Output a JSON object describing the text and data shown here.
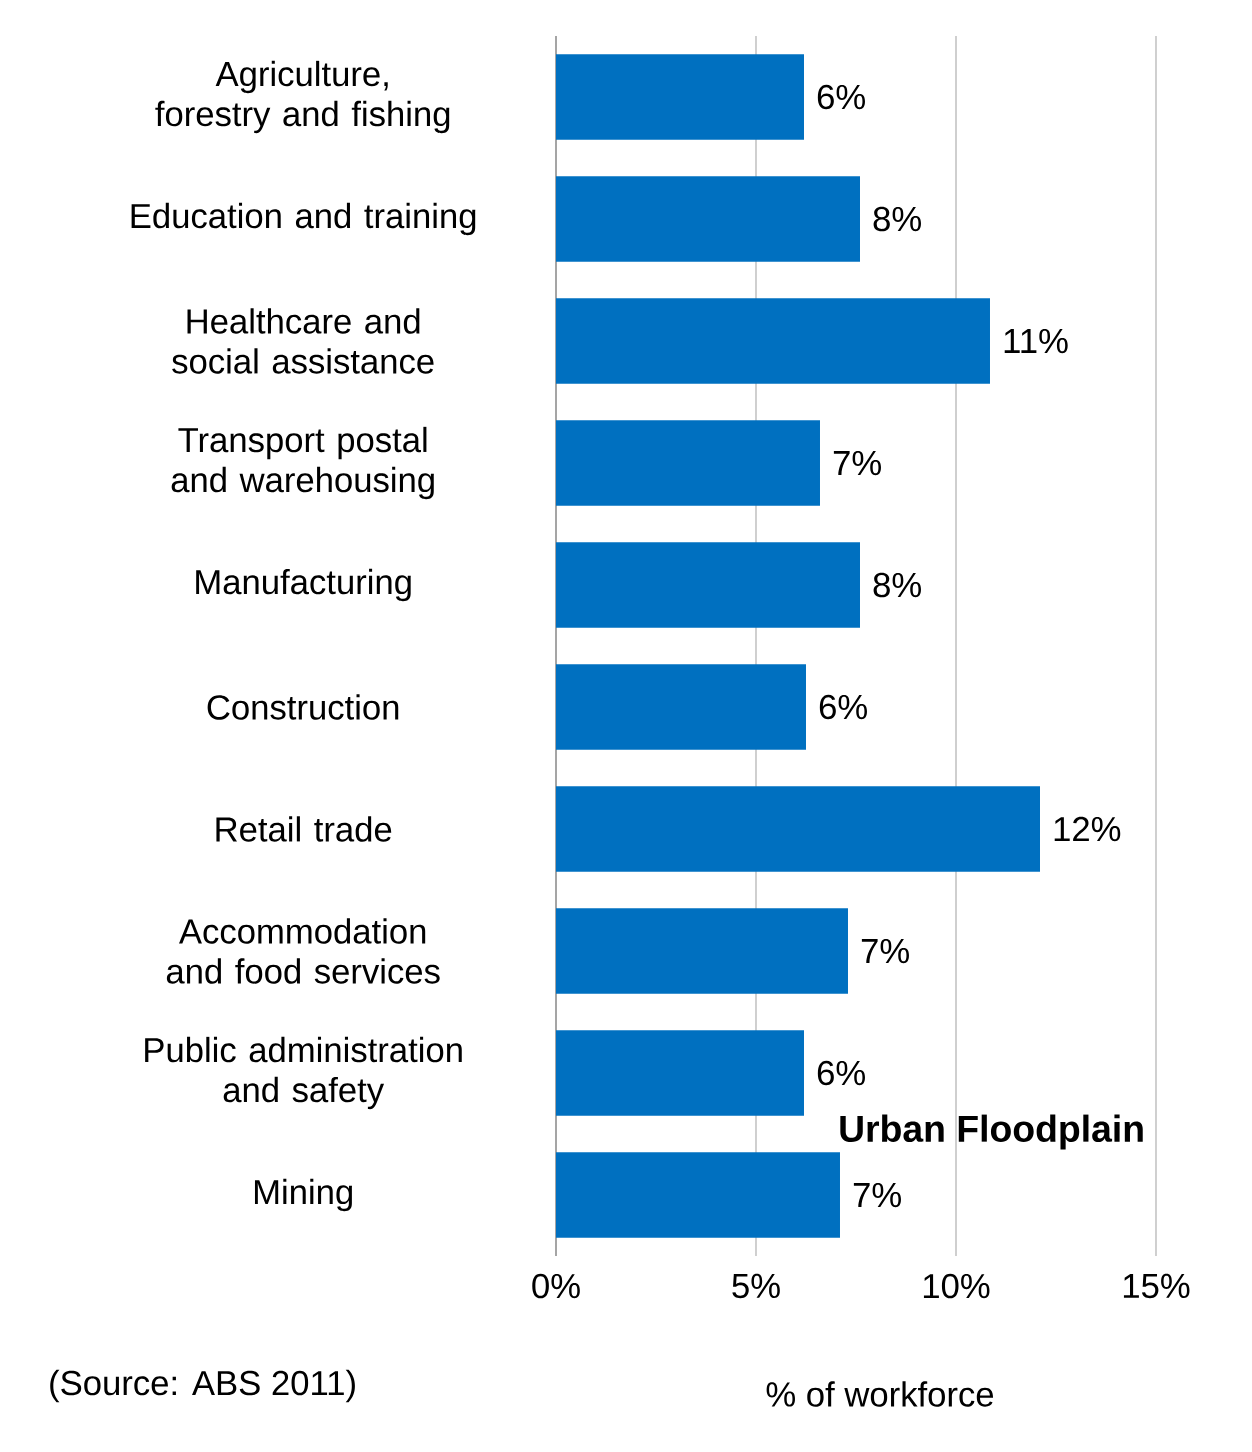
{
  "chart_data": {
    "type": "bar",
    "orientation": "horizontal",
    "categories": [
      "Agriculture, forestry and fishing",
      "Education and training",
      "Healthcare and social assistance",
      "Transport postal and warehousing",
      "Manufacturing",
      "Construction",
      "Retail trade",
      "Accommodation and food services",
      "Public administration and safety",
      "Mining"
    ],
    "values": [
      6.2,
      7.6,
      10.85,
      6.6,
      7.6,
      6.25,
      12.1,
      7.3,
      6.2,
      7.1
    ],
    "value_labels": [
      "6%",
      "8%",
      "11%",
      "7%",
      "8%",
      "6%",
      "12%",
      "7%",
      "6%",
      "7%"
    ],
    "color": "#0070c0",
    "xlabel": "% of workforce",
    "xlim": [
      0,
      15
    ],
    "xticks": [
      {
        "value": 0,
        "label": "0%"
      },
      {
        "value": 5,
        "label": "5%"
      },
      {
        "value": 10,
        "label": "10%"
      },
      {
        "value": 15,
        "label": "15%"
      }
    ],
    "grid": "x",
    "annotations": [
      "Urban Floodplain",
      "(Source: ABS 2011)"
    ]
  }
}
